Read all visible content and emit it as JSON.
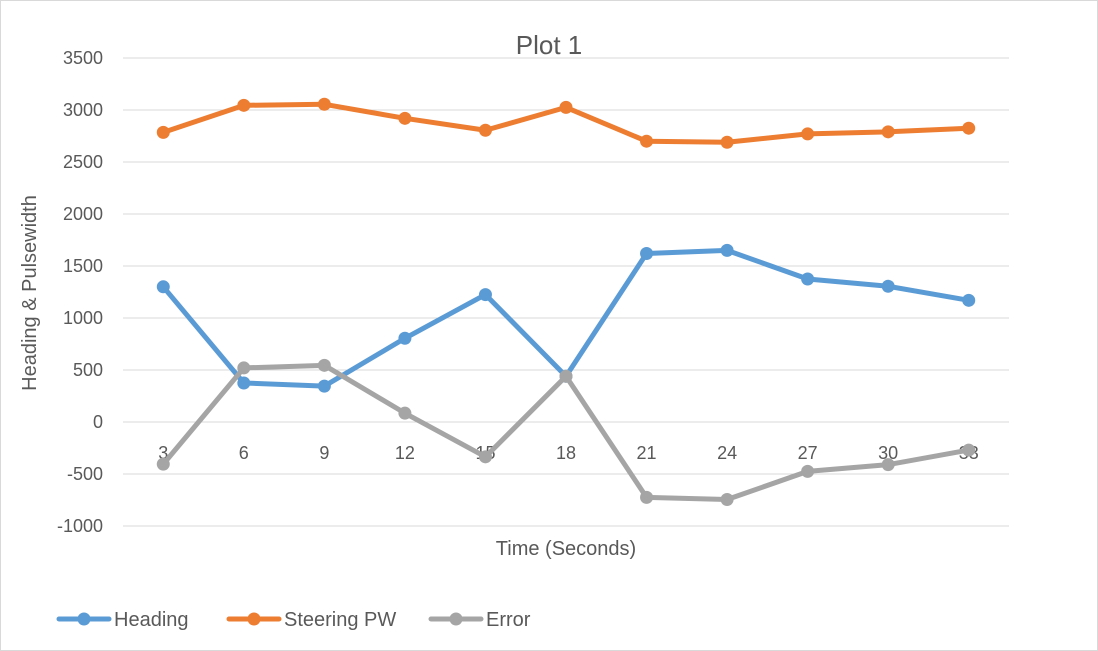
{
  "chart_data": {
    "type": "line",
    "title": "Plot 1",
    "xlabel": "Time (Seconds)",
    "ylabel": "Heading & Pulsewidth",
    "categories": [
      "3",
      "6",
      "9",
      "12",
      "15",
      "18",
      "21",
      "24",
      "27",
      "30",
      "33"
    ],
    "ylim": [
      -1000,
      3500
    ],
    "yticks": [
      3500,
      3000,
      2500,
      2000,
      1500,
      1000,
      500,
      0,
      -500,
      -1000
    ],
    "grid": true,
    "legend_position": "bottom-left",
    "series": [
      {
        "name": "Heading",
        "color": "#5b9bd5",
        "values": [
          1300,
          375,
          345,
          805,
          1225,
          440,
          1620,
          1650,
          1375,
          1305,
          1170
        ]
      },
      {
        "name": "Steering PW",
        "color": "#ed7d31",
        "values": [
          2785,
          3045,
          3055,
          2920,
          2805,
          3025,
          2700,
          2690,
          2770,
          2790,
          2825
        ]
      },
      {
        "name": "Error",
        "color": "#a5a5a5",
        "values": [
          -405,
          520,
          545,
          85,
          -335,
          440,
          -725,
          -745,
          -475,
          -410,
          -270
        ]
      }
    ]
  }
}
